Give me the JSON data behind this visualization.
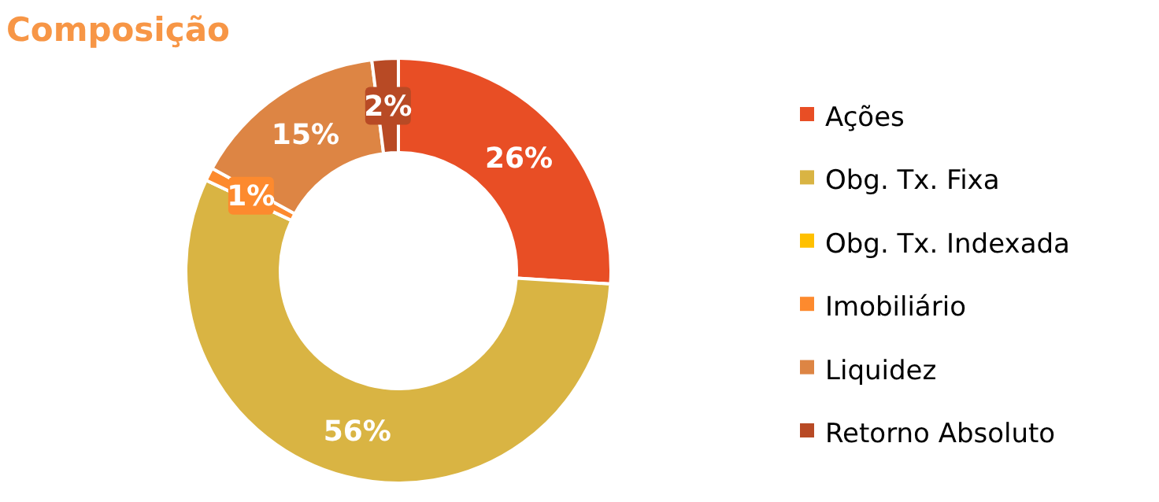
{
  "chart_data": {
    "type": "donut",
    "title": "Composição",
    "categories": [
      "Ações",
      "Obg. Tx. Fixa",
      "Obg. Tx. Indexada",
      "Imobiliário",
      "Liquidez",
      "Retorno Absoluto"
    ],
    "values": [
      26,
      56,
      0,
      1,
      15,
      2
    ],
    "value_labels": [
      "26%",
      "56%",
      null,
      "1%",
      "15%",
      "2%"
    ],
    "colors": [
      "#e84e25",
      "#d9b443",
      "#ffc000",
      "#fd8a2e",
      "#dd8544",
      "#b84a25"
    ],
    "legend": "right"
  }
}
